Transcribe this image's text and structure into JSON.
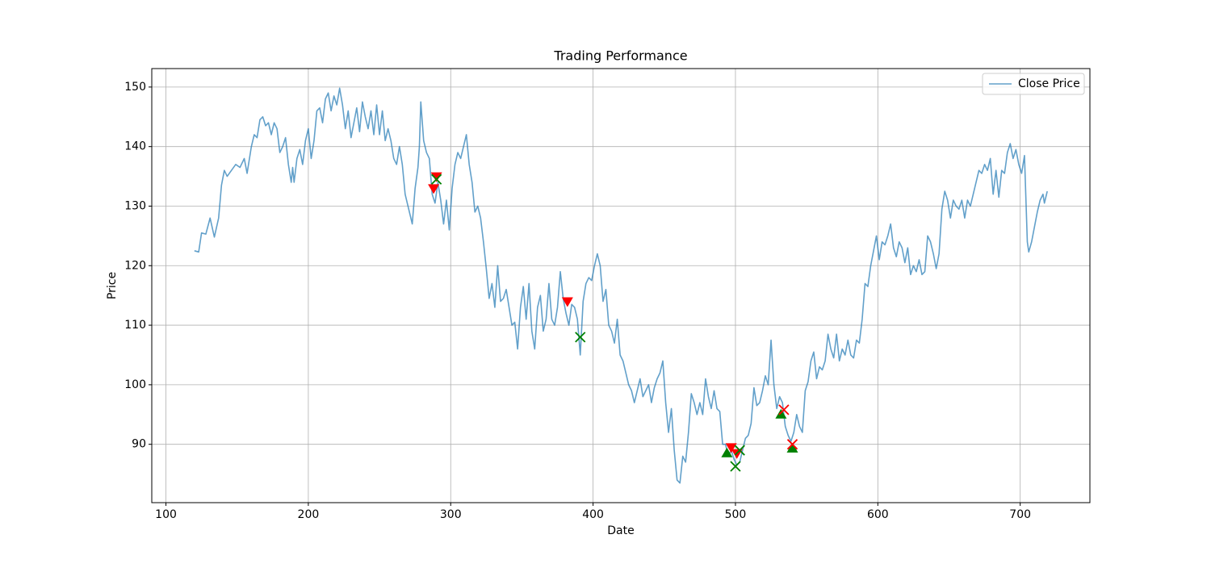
{
  "chart_data": {
    "type": "line",
    "title": "Trading Performance",
    "xlabel": "Date",
    "ylabel": "Price",
    "xlim": [
      90.05,
      748.95
    ],
    "ylim": [
      80.2,
      153.1
    ],
    "xticks": [
      100,
      200,
      300,
      400,
      500,
      600,
      700
    ],
    "yticks": [
      90,
      100,
      110,
      120,
      130,
      140,
      150
    ],
    "grid": true,
    "legend": "upper-right",
    "series": [
      {
        "name": "Close Price",
        "color": "#1f77b4",
        "x": [
          120,
          123,
          125,
          128,
          131,
          134,
          137,
          139,
          141,
          143,
          146,
          149,
          152,
          155,
          157,
          160,
          162,
          164,
          166,
          168,
          170,
          172,
          174,
          176,
          178,
          180,
          182,
          184,
          186,
          188,
          189,
          190,
          192,
          194,
          196,
          198,
          200,
          202,
          204,
          206,
          208,
          210,
          212,
          214,
          216,
          218,
          220,
          222,
          224,
          226,
          228,
          230,
          232,
          234,
          236,
          238,
          240,
          242,
          244,
          246,
          248,
          250,
          252,
          254,
          256,
          258,
          260,
          262,
          264,
          266,
          268,
          270,
          272,
          273,
          275,
          277,
          278,
          279,
          281,
          283,
          285,
          287,
          289,
          291,
          293,
          295,
          297,
          299,
          301,
          303,
          305,
          307,
          309,
          311,
          313,
          315,
          317,
          319,
          321,
          323,
          325,
          327,
          329,
          331,
          333,
          335,
          337,
          339,
          341,
          343,
          345,
          347,
          349,
          351,
          353,
          355,
          357,
          359,
          361,
          363,
          365,
          367,
          369,
          371,
          373,
          375,
          377,
          379,
          381,
          383,
          385,
          387,
          389,
          391,
          393,
          395,
          397,
          399,
          401,
          403,
          405,
          407,
          409,
          411,
          413,
          415,
          417,
          419,
          421,
          423,
          425,
          427,
          429,
          431,
          433,
          435,
          437,
          439,
          441,
          443,
          445,
          447,
          449,
          451,
          453,
          455,
          457,
          459,
          461,
          463,
          465,
          467,
          469,
          471,
          473,
          475,
          477,
          479,
          481,
          483,
          485,
          487,
          489,
          491,
          493,
          495,
          497,
          499,
          501,
          503,
          505,
          507,
          509,
          511,
          513,
          515,
          517,
          519,
          521,
          523,
          525,
          527,
          529,
          531,
          533,
          535,
          537,
          539,
          541,
          543,
          545,
          547,
          549,
          551,
          553,
          555,
          557,
          559,
          561,
          563,
          565,
          567,
          569,
          571,
          573,
          575,
          577,
          579,
          581,
          583,
          585,
          587,
          589,
          591,
          593,
          595,
          597,
          599,
          601,
          603,
          605,
          607,
          609,
          611,
          613,
          615,
          617,
          619,
          621,
          623,
          625,
          627,
          629,
          631,
          633,
          635,
          637,
          639,
          641,
          643,
          645,
          647,
          649,
          651,
          653,
          655,
          657,
          659,
          661,
          663,
          665,
          667,
          669,
          671,
          673,
          675,
          677,
          679,
          681,
          683,
          685,
          687,
          689,
          691,
          693,
          695,
          697,
          699,
          701,
          703,
          705,
          706,
          708,
          710,
          712,
          714,
          716,
          717,
          719
        ],
        "values": [
          122.5,
          122.3,
          125.5,
          125.3,
          128,
          124.8,
          128,
          133.5,
          136,
          135,
          136,
          137,
          136.5,
          138,
          135.5,
          140,
          142,
          141.5,
          144.5,
          145,
          143.5,
          144,
          142,
          144,
          143,
          139,
          140,
          141.5,
          137,
          134,
          136.5,
          134,
          138,
          139.5,
          137,
          141,
          143,
          138,
          141,
          146,
          146.5,
          144,
          148,
          149,
          146,
          148.5,
          147,
          149.8,
          147,
          143,
          146,
          141.5,
          144,
          146.5,
          142.5,
          147.5,
          145,
          143,
          146,
          142,
          147,
          142,
          146,
          141,
          143,
          141,
          138,
          137,
          140,
          137,
          132,
          130,
          128,
          127,
          133,
          136.5,
          140,
          147.5,
          141,
          139,
          138,
          132,
          130.5,
          134,
          131,
          127,
          131,
          126,
          133,
          137,
          139,
          138,
          140,
          142,
          137,
          134,
          129,
          130,
          128,
          124,
          119.5,
          114.5,
          117,
          113,
          120,
          114,
          114.5,
          116,
          113,
          110,
          110.5,
          106,
          113,
          116.5,
          111,
          117,
          109,
          106,
          113,
          115,
          109,
          111,
          117,
          111,
          110,
          113,
          119,
          114.5,
          112,
          110,
          113.5,
          113,
          111,
          105,
          114,
          117,
          118,
          117.5,
          120,
          122,
          120,
          114,
          116,
          110,
          109,
          107,
          111,
          105,
          104,
          102,
          100,
          99,
          97,
          99,
          101,
          98,
          99,
          100,
          97,
          99.5,
          101,
          102,
          104,
          97,
          92,
          96,
          89,
          84,
          83.5,
          88,
          87,
          92,
          98.5,
          97,
          95,
          97,
          95,
          101,
          98,
          96,
          99,
          96,
          95.5,
          90,
          90,
          88,
          89,
          87.5,
          86.5,
          87,
          89,
          91,
          91.5,
          93.5,
          99.5,
          96.5,
          97,
          99,
          101.5,
          100,
          107.5,
          100,
          96,
          98,
          97,
          93,
          91.5,
          90.5,
          92,
          95,
          93,
          92,
          99,
          100.5,
          104,
          105.5,
          101,
          103,
          102.5,
          104,
          108.5,
          106,
          104.5,
          108.5,
          104,
          106,
          105,
          107.5,
          105,
          104.5,
          107.5,
          107,
          111,
          117,
          116.5,
          120,
          122.5,
          125,
          121,
          124,
          123.5,
          125,
          127,
          123,
          121.5,
          124,
          123,
          120.5,
          123,
          118.5,
          120,
          119,
          121,
          118.5,
          119,
          125,
          124,
          122,
          119.5,
          122,
          129.5,
          132.5,
          131,
          128,
          131,
          130,
          129.5,
          131,
          128,
          131,
          130,
          132,
          134,
          136,
          135.5,
          137,
          136,
          138,
          132,
          136,
          131.5,
          136,
          135.5,
          139,
          140.5,
          138,
          139.5,
          137,
          135.5,
          138.5,
          124,
          122.3,
          124,
          126.5,
          129,
          131,
          132,
          130.5,
          132.5
        ]
      }
    ],
    "markers": [
      {
        "shape": "triangle-up",
        "color": "#008000",
        "x": [
          494,
          532,
          540
        ],
        "values": [
          88.5,
          95,
          89.3
        ]
      },
      {
        "shape": "triangle-down",
        "color": "#ff0000",
        "x": [
          288,
          290,
          382,
          497,
          501
        ],
        "values": [
          133,
          135,
          114,
          89.5,
          88.5
        ]
      },
      {
        "shape": "cross",
        "color": "#008000",
        "x": [
          290,
          391,
          500,
          503
        ],
        "values": [
          134.5,
          108,
          86.3,
          89
        ]
      },
      {
        "shape": "cross",
        "color": "#ff0000",
        "x": [
          534,
          540
        ],
        "values": [
          95.8,
          90
        ]
      }
    ]
  }
}
